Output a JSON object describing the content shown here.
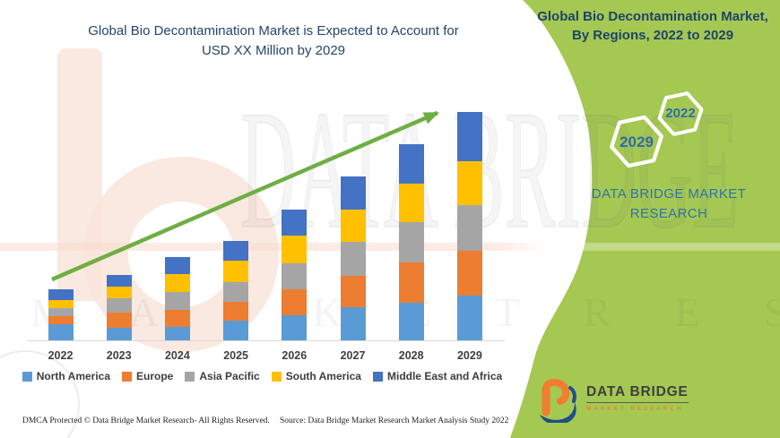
{
  "left_section": {
    "title_line1": "Global Bio Decontamination Market is Expected to Account for",
    "title_line2": "USD XX Million by 2029",
    "footer_left": "DMCA Protected © Data Bridge Market Research- All Rights Reserved.",
    "footer_source": "Source: Data Bridge Market Research Market Analysis Study 2022"
  },
  "right_panel": {
    "panel_color": "#A5C853",
    "title_line1": "Global Bio Decontamination Market,",
    "title_line2": "By Regions, 2022 to 2029",
    "hexagon_large_label": "2029",
    "hexagon_small_label": "2022",
    "brand_line1": "DATA BRIDGE MARKET",
    "brand_line2": "RESEARCH"
  },
  "logo": {
    "name": "DATA BRIDGE",
    "subtitle": "MARKET RESEARCH",
    "orange": "#F07E2E",
    "blue": "#1F4E8C"
  },
  "watermark": {
    "text_large": "DATA BRIDGE",
    "text_spaced": "M A R K E T   R E S E A R C H"
  },
  "chart_data": {
    "type": "bar",
    "stacked": true,
    "title": "Global Bio Decontamination Market is Expected to Account for USD XX Million by 2029",
    "subtitle": "Global Bio Decontamination Market, By Regions, 2022 to 2029",
    "xlabel": "",
    "ylabel": "",
    "units": "relative units (chart labeled only as USD XX Million; no value axis shown)",
    "y_axis_visible": false,
    "grid": false,
    "legend_position": "bottom",
    "categories": [
      "2022",
      "2023",
      "2024",
      "2025",
      "2026",
      "2027",
      "2028",
      "2029"
    ],
    "series": [
      {
        "name": "North America",
        "color": "#5B9BD5",
        "values": [
          18,
          14,
          15,
          22,
          28,
          37,
          42,
          50
        ]
      },
      {
        "name": "Europe",
        "color": "#ED7D31",
        "values": [
          9,
          17,
          19,
          21,
          29,
          35,
          45,
          50
        ]
      },
      {
        "name": "Asia Pacific",
        "color": "#A5A5A5",
        "values": [
          9,
          16,
          20,
          22,
          29,
          38,
          45,
          51
        ]
      },
      {
        "name": "South America",
        "color": "#FFC000",
        "values": [
          9,
          13,
          20,
          24,
          31,
          36,
          43,
          49
        ]
      },
      {
        "name": "Middle East and Africa",
        "color": "#4472C4",
        "values": [
          12,
          13,
          19,
          22,
          29,
          37,
          44,
          55
        ]
      }
    ],
    "totals": [
      57,
      73,
      93,
      111,
      146,
      183,
      219,
      255
    ],
    "trend_arrow": {
      "present": true,
      "color": "#6FAE44",
      "from_xy": [
        58,
        312
      ],
      "to_xy": [
        488,
        126
      ]
    }
  }
}
